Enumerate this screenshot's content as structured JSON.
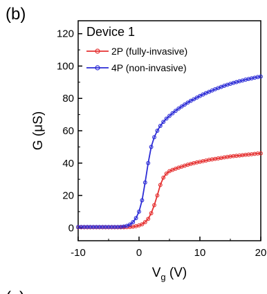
{
  "panel_label": "(b)",
  "next_panel_label": "(c)",
  "chart_data": {
    "type": "line",
    "title": "",
    "annotation": "Device 1",
    "xlabel": "V",
    "xlabel_sub": "g",
    "xlabel_unit": " (V)",
    "ylabel": "G (μS)",
    "xlim": [
      -10,
      20
    ],
    "ylim": [
      -8,
      128
    ],
    "xticks": [
      -10,
      0,
      10,
      20
    ],
    "yticks": [
      0,
      20,
      40,
      60,
      80,
      100,
      120
    ],
    "grid": false,
    "legend_position": "top-left",
    "series": [
      {
        "name": "2P (fully-invasive)",
        "color": "#e53030",
        "x": [
          -10,
          -9.5,
          -9,
          -8.5,
          -8,
          -7.5,
          -7,
          -6.5,
          -6,
          -5.5,
          -5,
          -4.5,
          -4,
          -3.5,
          -3,
          -2.5,
          -2,
          -1.5,
          -1,
          -0.5,
          0,
          0.5,
          1,
          1.5,
          2,
          2.5,
          3,
          3.5,
          4,
          4.5,
          5,
          5.5,
          6,
          6.5,
          7,
          7.5,
          8,
          8.5,
          9,
          9.5,
          10,
          10.5,
          11,
          11.5,
          12,
          12.5,
          13,
          13.5,
          14,
          14.5,
          15,
          15.5,
          16,
          16.5,
          17,
          17.5,
          18,
          18.5,
          19,
          19.5,
          20
        ],
        "values": [
          0.3,
          0.3,
          0.3,
          0.3,
          0.3,
          0.3,
          0.3,
          0.3,
          0.3,
          0.3,
          0.3,
          0.3,
          0.3,
          0.3,
          0.3,
          0.3,
          0.4,
          0.5,
          0.7,
          1.0,
          1.5,
          2.2,
          3.5,
          5.5,
          9,
          14,
          20,
          26.5,
          31,
          33.5,
          35,
          35.8,
          36.5,
          37.2,
          37.8,
          38.4,
          39,
          39.5,
          40,
          40.4,
          40.8,
          41.2,
          41.6,
          42,
          42.3,
          42.6,
          42.9,
          43.2,
          43.5,
          43.8,
          44.1,
          44.3,
          44.5,
          44.7,
          44.9,
          45.1,
          45.3,
          45.5,
          45.7,
          45.9,
          46.0
        ]
      },
      {
        "name": "4P (non-invasive)",
        "color": "#2c2cd6",
        "x": [
          -10,
          -9.5,
          -9,
          -8.5,
          -8,
          -7.5,
          -7,
          -6.5,
          -6,
          -5.5,
          -5,
          -4.5,
          -4,
          -3.5,
          -3,
          -2.5,
          -2,
          -1.5,
          -1,
          -0.5,
          0,
          0.5,
          1,
          1.5,
          2,
          2.5,
          3,
          3.5,
          4,
          4.5,
          5,
          5.5,
          6,
          6.5,
          7,
          7.5,
          8,
          8.5,
          9,
          9.5,
          10,
          10.5,
          11,
          11.5,
          12,
          12.5,
          13,
          13.5,
          14,
          14.5,
          15,
          15.5,
          16,
          16.5,
          17,
          17.5,
          18,
          18.5,
          19,
          19.5,
          20
        ],
        "values": [
          0.5,
          0.5,
          0.5,
          0.5,
          0.5,
          0.5,
          0.5,
          0.5,
          0.5,
          0.5,
          0.5,
          0.5,
          0.5,
          0.5,
          0.6,
          0.8,
          1.2,
          2.0,
          3.5,
          6,
          10,
          17,
          28,
          40,
          50,
          56,
          60,
          63,
          65.5,
          67.5,
          69.2,
          70.8,
          72.3,
          73.7,
          75,
          76.2,
          77.4,
          78.5,
          79.5,
          80.5,
          81.5,
          82.4,
          83.3,
          84.1,
          84.9,
          85.7,
          86.4,
          87.1,
          87.8,
          88.4,
          89,
          89.6,
          90.1,
          90.6,
          91.1,
          91.6,
          92,
          92.4,
          92.8,
          93.2,
          93.5
        ]
      }
    ]
  }
}
